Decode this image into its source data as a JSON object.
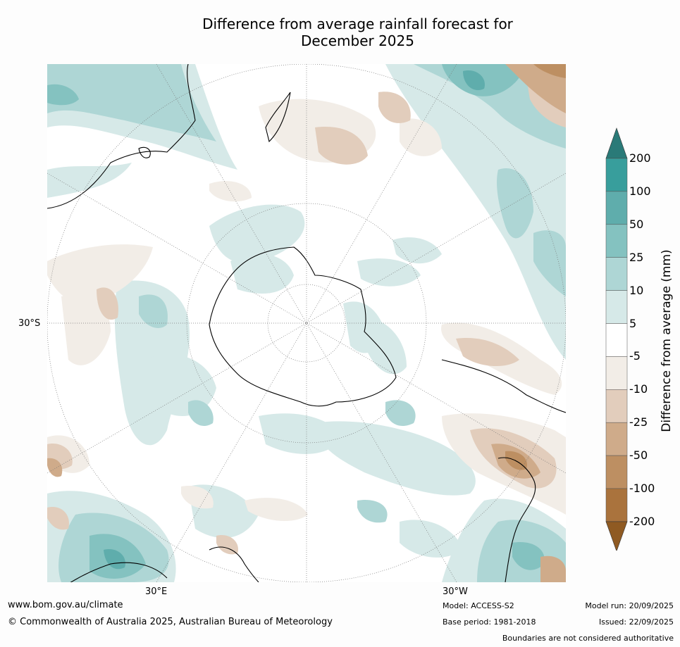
{
  "title": {
    "line1": "Difference from average rainfall forecast for",
    "line2": "December 2025"
  },
  "map": {
    "projection": "south polar stereographic",
    "lat_label": "30°S",
    "lon_label_left": "30°E",
    "lon_label_right": "30°W"
  },
  "legend": {
    "title": "Difference from average (mm)",
    "levels": [
      "200",
      "100",
      "50",
      "25",
      "10",
      "5",
      "-5",
      "-10",
      "-25",
      "-50",
      "-100",
      "-200"
    ],
    "colors": {
      "above_200": "#2a7a78",
      "100_200": "#389e9c",
      "50_100": "#5fadac",
      "25_50": "#84c2c0",
      "10_25": "#aed6d5",
      "5_10": "#d6e9e8",
      "neutral": "#ffffff",
      "m10_m5": "#f2ede7",
      "m25_m10": "#e2cdbc",
      "m50_m25": "#cfab8a",
      "m100_m50": "#bd8f62",
      "m200_m100": "#aa733d",
      "below_m200": "#8f5a22"
    }
  },
  "footer": {
    "website": "www.bom.gov.au/climate",
    "copyright": "© Commonwealth of Australia 2025, Australian Bureau of Meteorology",
    "model": "Model: ACCESS-S2",
    "base_period": "Base period: 1981-2018",
    "model_run": "Model run: 20/09/2025",
    "issued": "Issued: 22/09/2025",
    "disclaimer": "Boundaries are not considered authoritative"
  }
}
